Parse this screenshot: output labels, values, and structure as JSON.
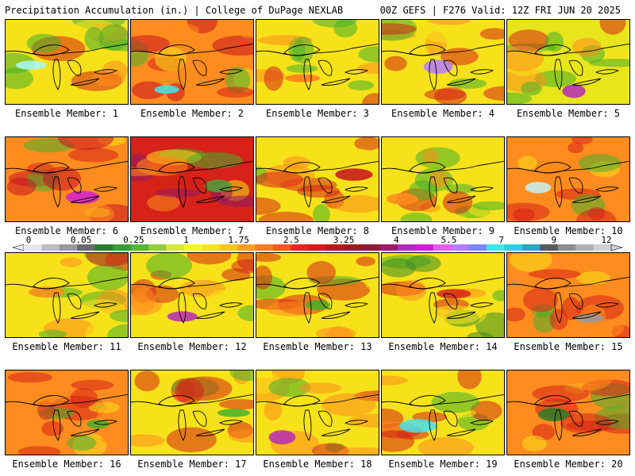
{
  "header": {
    "title_left": "Precipitation Accumulation (in.) | College of DuPage NEXLAB",
    "title_right": "00Z GEFS | F276 Valid: 12Z FRI JUN 20 2025"
  },
  "caption_prefix": "Ensemble Member: ",
  "members": [
    {
      "label": "Ensemble Member: 1",
      "base": "#f7e21a",
      "accent": "#46b02c",
      "high": "#a5fafa"
    },
    {
      "label": "Ensemble Member: 2",
      "base": "#ff8c1e",
      "accent": "#c71022",
      "high": "#3fe7f0"
    },
    {
      "label": "Ensemble Member: 3",
      "base": "#f7e21a",
      "accent": "#46b02c",
      "high": "#ff7a20"
    },
    {
      "label": "Ensemble Member: 4",
      "base": "#f7e21a",
      "accent": "#d62218",
      "high": "#b57cff"
    },
    {
      "label": "Ensemble Member: 5",
      "base": "#e8e51a",
      "accent": "#46b02c",
      "high": "#b52ab8"
    },
    {
      "label": "Ensemble Member: 6",
      "base": "#ff8c1e",
      "accent": "#c71022",
      "high": "#d01fd3"
    },
    {
      "label": "Ensemble Member: 7",
      "base": "#d62218",
      "accent": "#8e1a66",
      "high": "#4fa23a"
    },
    {
      "label": "Ensemble Member: 8",
      "base": "#f7e21a",
      "accent": "#d62218",
      "high": "#c71022"
    },
    {
      "label": "Ensemble Member: 9",
      "base": "#f7e21a",
      "accent": "#46b02c",
      "high": "#ff8c1e"
    },
    {
      "label": "Ensemble Member: 10",
      "base": "#ff8c1e",
      "accent": "#d62218",
      "high": "#c6f2f5"
    },
    {
      "label": "Ensemble Member: 11",
      "base": "#f7e21a",
      "accent": "#46b02c",
      "high": "#ff8c1e"
    },
    {
      "label": "Ensemble Member: 12",
      "base": "#f7e21a",
      "accent": "#d62218",
      "high": "#b52ab8"
    },
    {
      "label": "Ensemble Member: 13",
      "base": "#f7e21a",
      "accent": "#d62218",
      "high": "#46b02c"
    },
    {
      "label": "Ensemble Member: 14",
      "base": "#f7e21a",
      "accent": "#3c8c28",
      "high": "#d62218"
    },
    {
      "label": "Ensemble Member: 15",
      "base": "#ff8c1e",
      "accent": "#d62218",
      "high": "#9a9a9a"
    },
    {
      "label": "Ensemble Member: 16",
      "base": "#ff8c1e",
      "accent": "#d62218",
      "high": "#46b02c"
    },
    {
      "label": "Ensemble Member: 17",
      "base": "#f7e21a",
      "accent": "#d62218",
      "high": "#46b02c"
    },
    {
      "label": "Ensemble Member: 18",
      "base": "#f7e21a",
      "accent": "#ff8c1e",
      "high": "#b52ab8"
    },
    {
      "label": "Ensemble Member: 19",
      "base": "#f7e21a",
      "accent": "#d62218",
      "high": "#4ae0ee"
    },
    {
      "label": "Ensemble Member: 20",
      "base": "#ff8c1e",
      "accent": "#d62218",
      "high": "#2c7d2a"
    }
  ],
  "colorbar": {
    "labels": [
      "0",
      "0.05",
      "0.25",
      "1",
      "1.75",
      "2.5",
      "3.25",
      "4",
      "5.5",
      "7",
      "9",
      "12"
    ],
    "colors": [
      "#e8e8e8",
      "#bdbdbd",
      "#9a9a9a",
      "#6a6a6a",
      "#2c7d2a",
      "#3d9a30",
      "#56b43a",
      "#95cc3f",
      "#d6e83a",
      "#f7f71e",
      "#fae21a",
      "#fcc61a",
      "#ff9f1c",
      "#ff7a20",
      "#ff5525",
      "#e8261e",
      "#d61a1a",
      "#b81a1a",
      "#9c1a1a",
      "#8e1a36",
      "#a0186a",
      "#b52ab8",
      "#d01fd3",
      "#e65ee8",
      "#b57cff",
      "#7c86ff",
      "#3fe7f0",
      "#2cd0dc",
      "#2aa8b8",
      "#5a5a5a",
      "#8e8e8e",
      "#b2b2b2",
      "#d0d0d0"
    ]
  }
}
